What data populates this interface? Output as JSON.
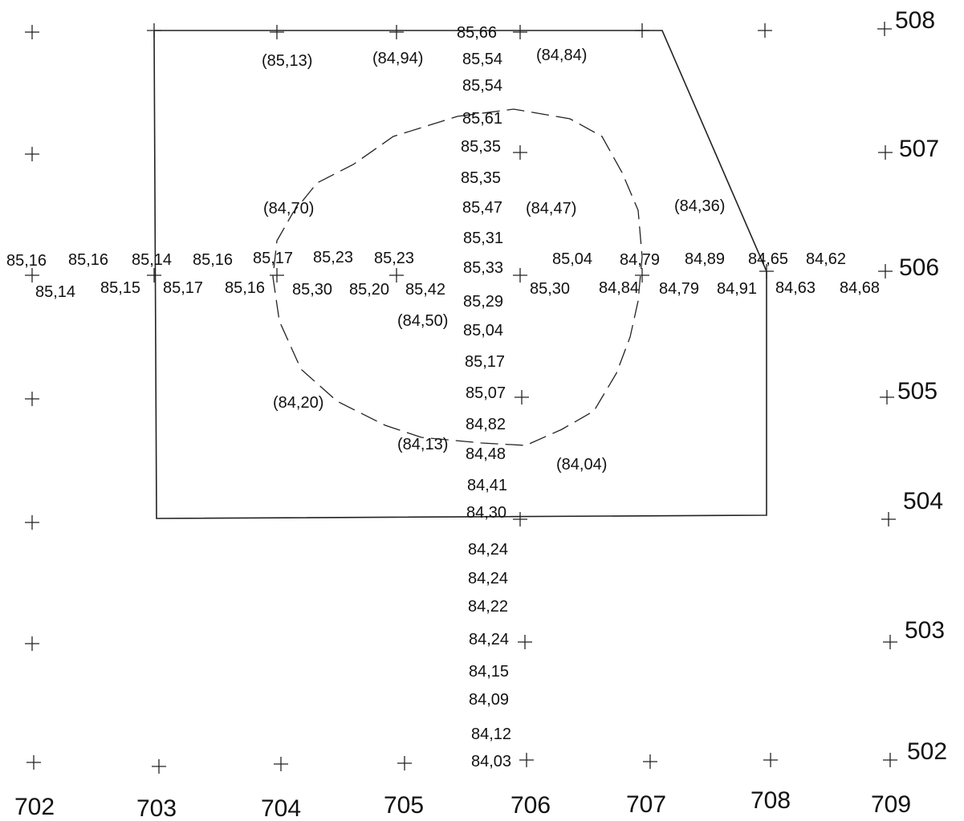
{
  "grid": {
    "x_labels": [
      "702",
      "703",
      "704",
      "705",
      "706",
      "707",
      "708",
      "709"
    ],
    "y_labels": [
      "508",
      "507",
      "506",
      "505",
      "504",
      "503",
      "502"
    ]
  },
  "elevations": {
    "col_706": [
      "85,66",
      "85,54",
      "85,54",
      "85,61",
      "85,35",
      "85,35",
      "85,47",
      "85,31",
      "85,33",
      "85,29",
      "85,04",
      "85,17",
      "85,07",
      "84,82",
      "84,48",
      "84,41",
      "84,30",
      "84,24",
      "84,24",
      "84,22",
      "84,24",
      "84,15",
      "84,09",
      "84,12",
      "84,03"
    ],
    "row_506_upper": [
      "85,16",
      "85,16",
      "85,14",
      "85,16",
      "85,17",
      "85,23",
      "85,23",
      "85,04",
      "84,79",
      "84,89",
      "84,65",
      "84,62"
    ],
    "row_506_lower": [
      "85,14",
      "85,15",
      "85,17",
      "85,16",
      "85,30",
      "85,20",
      "85,42",
      "85,30",
      "84,84",
      "84,79",
      "84,91",
      "84,63",
      "84,68"
    ]
  },
  "spot_heights": [
    "(85,13)",
    "(84,94)",
    "(84,84)",
    "(84,70)",
    "(84,47)",
    "(84,36)",
    "(84,50)",
    "(84,20)",
    "(84,13)",
    "(84,04)"
  ]
}
